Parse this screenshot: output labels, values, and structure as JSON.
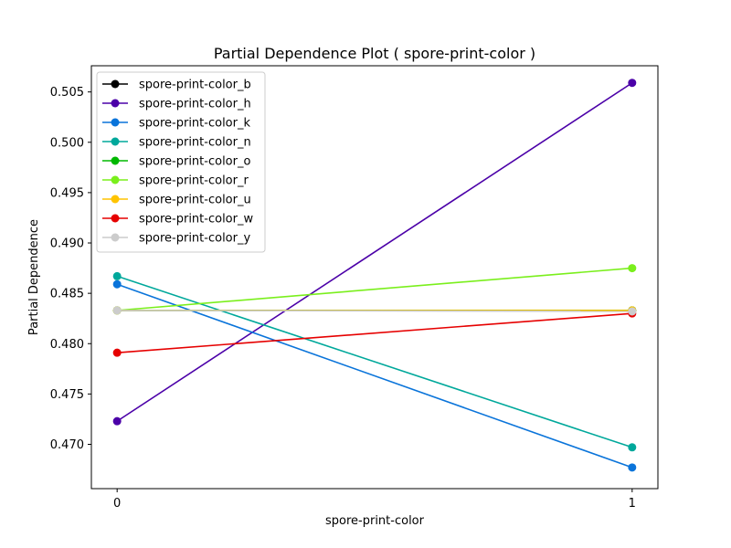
{
  "chart_data": {
    "type": "line",
    "title": "Partial Dependence Plot ( spore-print-color )",
    "xlabel": "spore-print-color",
    "ylabel": "Partial Dependence",
    "x": [
      0,
      1
    ],
    "x_ticks": [
      "0",
      "1"
    ],
    "xlim": [
      -0.05,
      1.05
    ],
    "ylim": [
      0.4656,
      0.5076
    ],
    "y_ticks": [
      "0.470",
      "0.475",
      "0.480",
      "0.485",
      "0.490",
      "0.495",
      "0.500",
      "0.505"
    ],
    "grid": false,
    "legend_position": "upper-left",
    "series": [
      {
        "name": "spore-print-color_b",
        "values": [
          0.4833,
          0.4833
        ],
        "color": "#000000"
      },
      {
        "name": "spore-print-color_h",
        "values": [
          0.4723,
          0.5059
        ],
        "color": "#4b00a8"
      },
      {
        "name": "spore-print-color_k",
        "values": [
          0.4859,
          0.4677
        ],
        "color": "#0a74da"
      },
      {
        "name": "spore-print-color_n",
        "values": [
          0.4867,
          0.4697
        ],
        "color": "#00a89b"
      },
      {
        "name": "spore-print-color_o",
        "values": [
          0.4833,
          0.4833
        ],
        "color": "#00b800"
      },
      {
        "name": "spore-print-color_r",
        "values": [
          0.4833,
          0.4875
        ],
        "color": "#7aef1c"
      },
      {
        "name": "spore-print-color_u",
        "values": [
          0.4833,
          0.4833
        ],
        "color": "#ffc400"
      },
      {
        "name": "spore-print-color_w",
        "values": [
          0.4791,
          0.483
        ],
        "color": "#e60000"
      },
      {
        "name": "spore-print-color_y",
        "values": [
          0.4833,
          0.4832
        ],
        "color": "#cccccc"
      }
    ]
  }
}
